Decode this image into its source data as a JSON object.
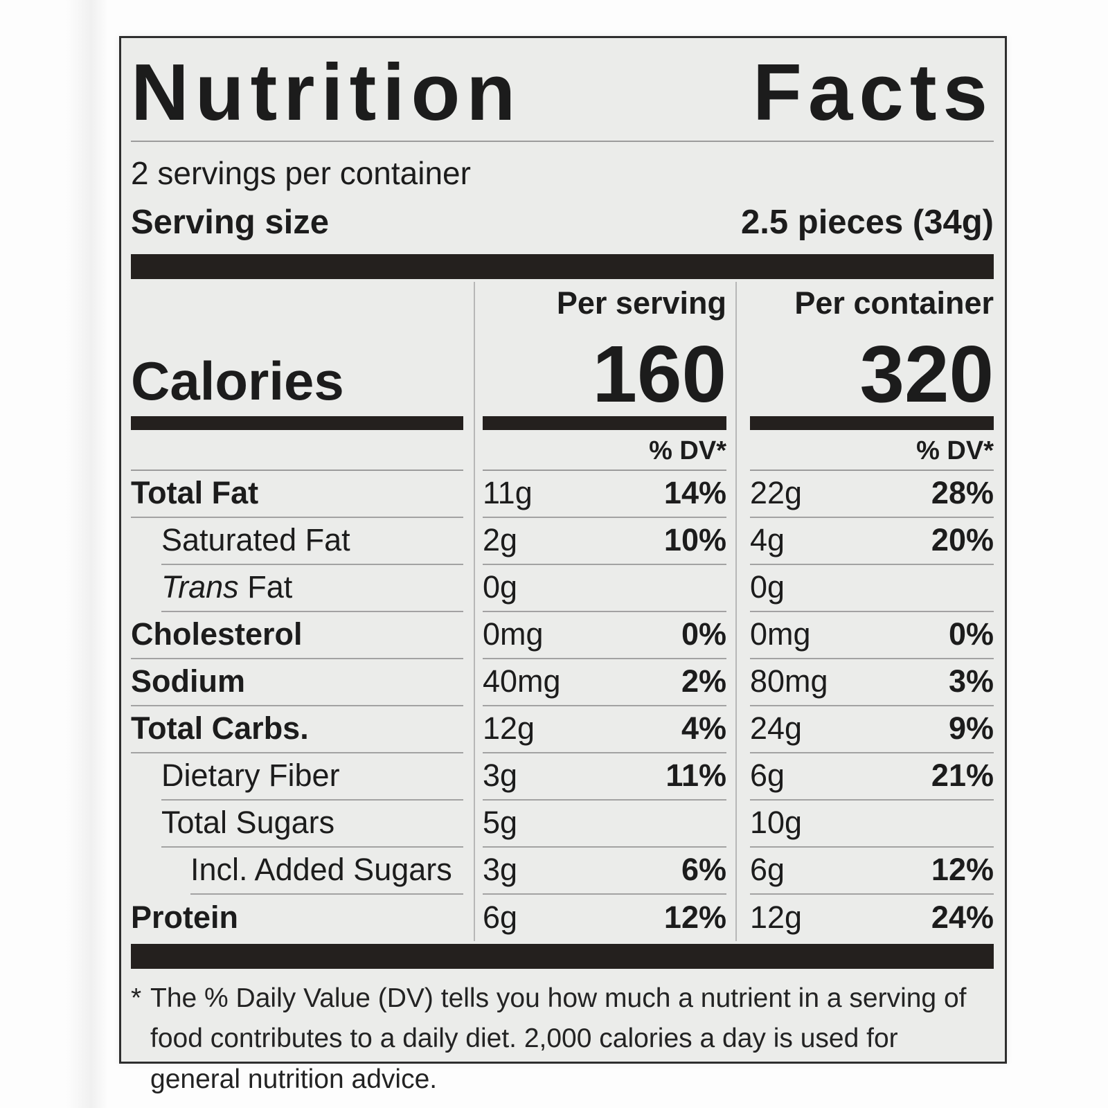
{
  "label": {
    "title": {
      "word1": "Nutrition",
      "word2": "Facts"
    },
    "servings_per_container": "2 servings per container",
    "serving_size_label": "Serving size",
    "serving_size_value": "2.5 pieces (34g)",
    "calories": {
      "label": "Calories",
      "per_serving_header": "Per serving",
      "per_container_header": "Per container",
      "per_serving_value": "160",
      "per_container_value": "320"
    },
    "dv_header": "% DV*",
    "rows": [
      {
        "label_italic": "",
        "label": "Total Fat",
        "bold": true,
        "indent": 0,
        "ps_amt": "11g",
        "ps_dv": "14%",
        "pc_amt": "22g",
        "pc_dv": "28%"
      },
      {
        "label_italic": "",
        "label": "Saturated Fat",
        "bold": false,
        "indent": 1,
        "ps_amt": "2g",
        "ps_dv": "10%",
        "pc_amt": "4g",
        "pc_dv": "20%"
      },
      {
        "label_italic": "Trans ",
        "label": "Fat",
        "bold": false,
        "indent": 1,
        "ps_amt": "0g",
        "ps_dv": "",
        "pc_amt": "0g",
        "pc_dv": ""
      },
      {
        "label_italic": "",
        "label": "Cholesterol",
        "bold": true,
        "indent": 0,
        "ps_amt": "0mg",
        "ps_dv": "0%",
        "pc_amt": "0mg",
        "pc_dv": "0%"
      },
      {
        "label_italic": "",
        "label": "Sodium",
        "bold": true,
        "indent": 0,
        "ps_amt": "40mg",
        "ps_dv": "2%",
        "pc_amt": "80mg",
        "pc_dv": "3%"
      },
      {
        "label_italic": "",
        "label": "Total Carbs.",
        "bold": true,
        "indent": 0,
        "ps_amt": "12g",
        "ps_dv": "4%",
        "pc_amt": "24g",
        "pc_dv": "9%"
      },
      {
        "label_italic": "",
        "label": "Dietary Fiber",
        "bold": false,
        "indent": 1,
        "ps_amt": "3g",
        "ps_dv": "11%",
        "pc_amt": "6g",
        "pc_dv": "21%"
      },
      {
        "label_italic": "",
        "label": "Total Sugars",
        "bold": false,
        "indent": 1,
        "ps_amt": "5g",
        "ps_dv": "",
        "pc_amt": "10g",
        "pc_dv": ""
      },
      {
        "label_italic": "",
        "label": "Incl. Added Sugars",
        "bold": false,
        "indent": 2,
        "ps_amt": "3g",
        "ps_dv": "6%",
        "pc_amt": "6g",
        "pc_dv": "12%"
      },
      {
        "label_italic": "",
        "label": "Protein",
        "bold": true,
        "indent": 0,
        "ps_amt": "6g",
        "ps_dv": "12%",
        "pc_amt": "12g",
        "pc_dv": "24%"
      }
    ],
    "footnote": {
      "marker": "*",
      "text": "The % Daily Value (DV) tells you how much a nutrient in a serving of food contributes to a daily diet. 2,000 calories a day is used for general nutrition advice."
    },
    "colors": {
      "label_background": "#ebecea",
      "bar_black": "#24201e",
      "rule_gray": "#a2a2a2",
      "text_black": "#1c1c1c"
    }
  }
}
